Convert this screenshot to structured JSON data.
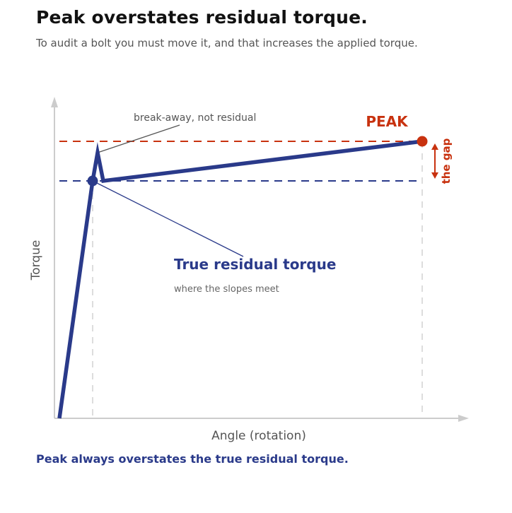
{
  "header": {
    "title": "Peak overstates residual torque.",
    "subtitle": "To audit a bolt you must move it, and that increases the applied torque."
  },
  "diagram": {
    "x_axis_label": "Angle (rotation)",
    "y_axis_label": "Torque",
    "breakaway_note": "break-away, not residual",
    "peak_label": "PEAK",
    "gap_label": "the gap",
    "residual_label": "True residual torque",
    "residual_sublabel": "where the slopes meet"
  },
  "footer": {
    "text": "Peak always overstates the true residual torque."
  },
  "colors": {
    "curve": "#2a3a8a",
    "peak": "#c8320f",
    "axis": "#cccccc",
    "text_dark": "#111111",
    "text_muted": "#555555"
  }
}
